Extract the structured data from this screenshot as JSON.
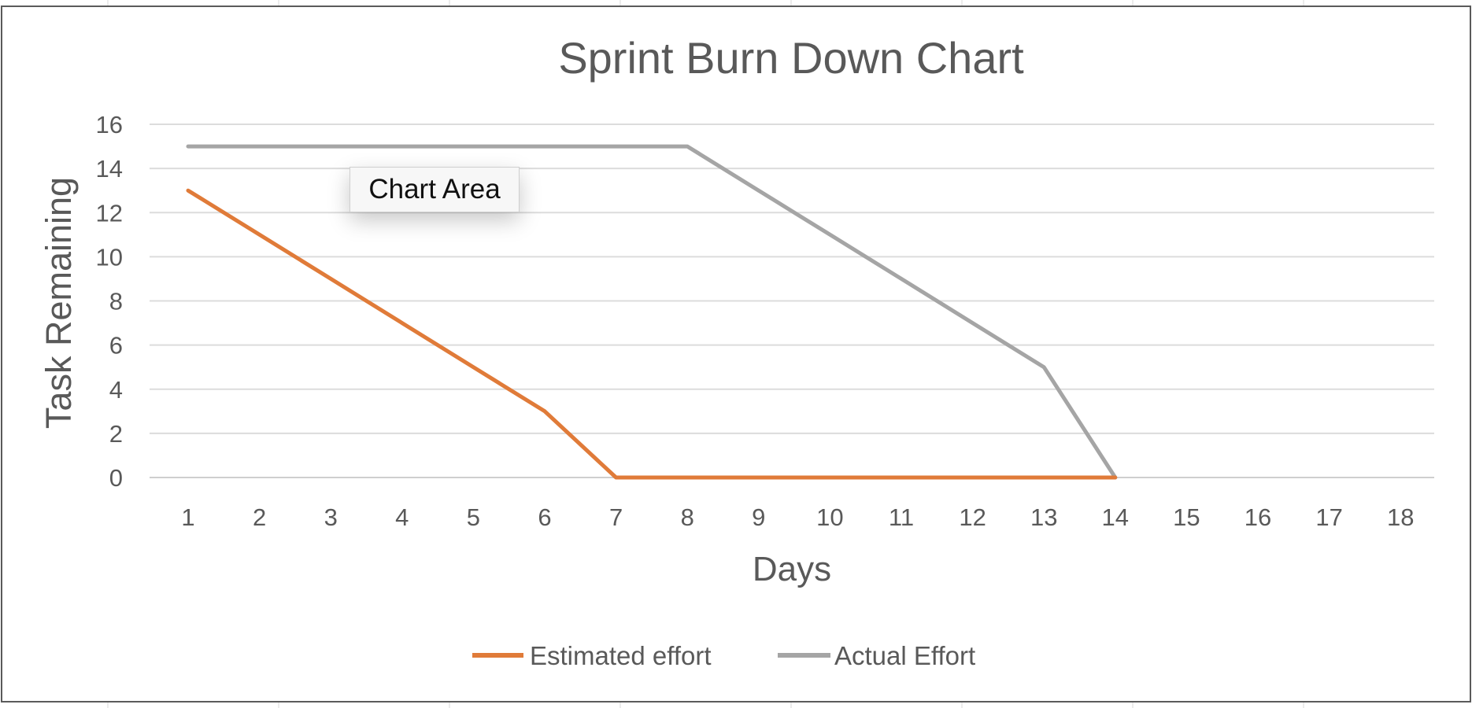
{
  "chart_data": {
    "type": "line",
    "title": "Sprint Burn Down Chart",
    "xlabel": "Days",
    "ylabel": "Task Remaining",
    "x": [
      1,
      2,
      3,
      4,
      5,
      6,
      7,
      8,
      9,
      10,
      11,
      12,
      13,
      14,
      15,
      16,
      17,
      18
    ],
    "x_tick_labels": [
      "1",
      "2",
      "3",
      "4",
      "5",
      "6",
      "7",
      "8",
      "9",
      "10",
      "11",
      "12",
      "13",
      "14",
      "15",
      "16",
      "17",
      "18"
    ],
    "ylim": [
      0,
      16
    ],
    "y_ticks": [
      0,
      2,
      4,
      6,
      8,
      10,
      12,
      14,
      16
    ],
    "y_tick_labels": [
      "0",
      "2",
      "4",
      "6",
      "8",
      "10",
      "12",
      "14",
      "16"
    ],
    "grid": true,
    "legend_position": "bottom",
    "series": [
      {
        "name": "Estimated effort",
        "color": "#e07b39",
        "points": [
          [
            1,
            13
          ],
          [
            2,
            11
          ],
          [
            3,
            9
          ],
          [
            4,
            7
          ],
          [
            5,
            5
          ],
          [
            6,
            3
          ],
          [
            7,
            0
          ],
          [
            8,
            0
          ],
          [
            9,
            0
          ],
          [
            10,
            0
          ],
          [
            11,
            0
          ],
          [
            12,
            0
          ],
          [
            13,
            0
          ],
          [
            14,
            0
          ]
        ]
      },
      {
        "name": "Actual Effort",
        "color": "#a5a5a5",
        "points": [
          [
            1,
            15
          ],
          [
            2,
            15
          ],
          [
            3,
            15
          ],
          [
            4,
            15
          ],
          [
            5,
            15
          ],
          [
            6,
            15
          ],
          [
            7,
            15
          ],
          [
            8,
            15
          ],
          [
            9,
            13
          ],
          [
            10,
            11
          ],
          [
            11,
            9
          ],
          [
            12,
            7
          ],
          [
            13,
            5
          ],
          [
            14,
            0
          ]
        ]
      }
    ]
  },
  "tooltip": {
    "text": "Chart Area"
  }
}
